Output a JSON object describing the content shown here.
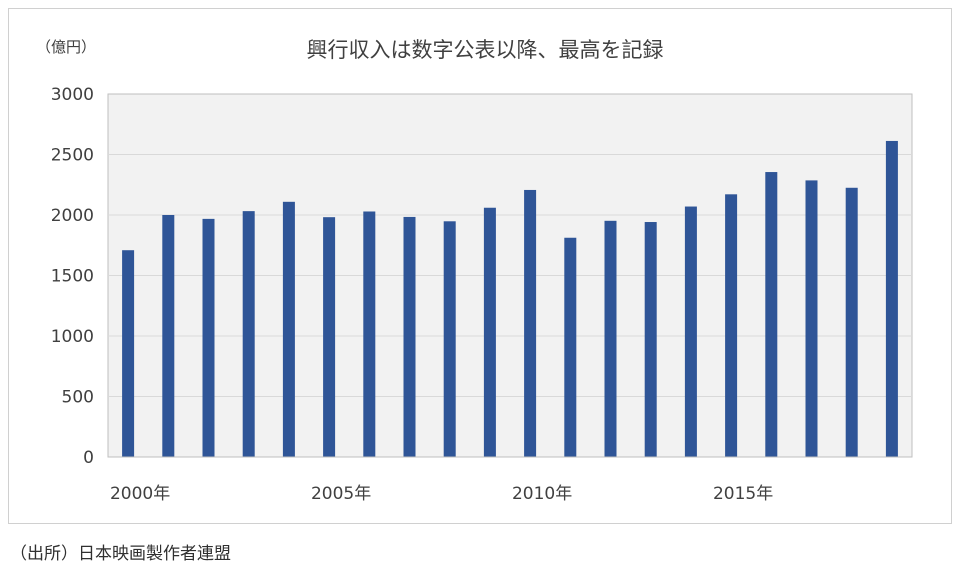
{
  "title": "興行収入は数字公表以降、最高を記録",
  "unit_label": "（億円）",
  "source": "（出所）日本映画製作者連盟",
  "colors": {
    "bar": "#2f5597",
    "plot_bg": "#f2f2f2",
    "grid": "#d9d9d9"
  },
  "chart_data": {
    "type": "bar",
    "title": "興行収入は数字公表以降、最高を記録",
    "ylabel": "（億円）",
    "xlabel": "",
    "ylim": [
      0,
      3000
    ],
    "yticks": [
      0,
      500,
      1000,
      1500,
      2000,
      2500,
      3000
    ],
    "categories": [
      "2000",
      "2001",
      "2002",
      "2003",
      "2004",
      "2005",
      "2006",
      "2007",
      "2008",
      "2009",
      "2010",
      "2011",
      "2012",
      "2013",
      "2014",
      "2015",
      "2016",
      "2017",
      "2018",
      "2019"
    ],
    "x_tick_labels": [
      {
        "category": "2000",
        "label": "2000年"
      },
      {
        "category": "2005",
        "label": "2005年"
      },
      {
        "category": "2010",
        "label": "2010年"
      },
      {
        "category": "2015",
        "label": "2015年"
      }
    ],
    "values": [
      1709,
      2000,
      1968,
      2032,
      2109,
      1982,
      2029,
      1984,
      1948,
      2060,
      2207,
      1812,
      1952,
      1942,
      2070,
      2171,
      2355,
      2286,
      2225,
      2612
    ],
    "grid": true,
    "legend": "none"
  }
}
